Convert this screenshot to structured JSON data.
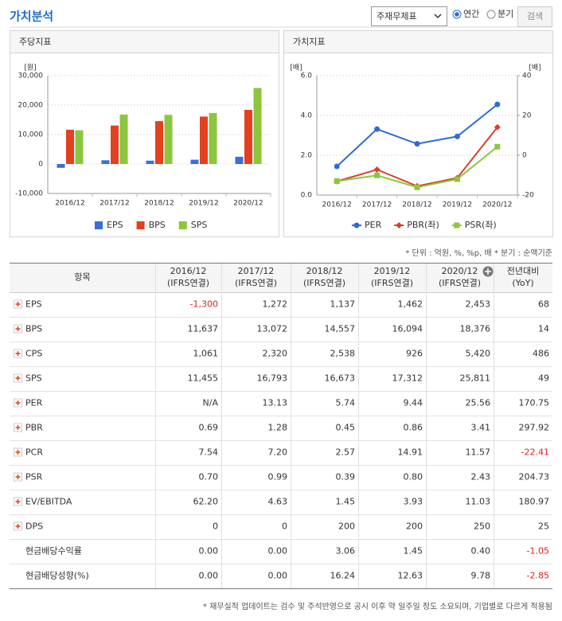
{
  "header": {
    "title": "가치분석",
    "select": "주재무제표",
    "radio": [
      "연간",
      "분기"
    ],
    "radio_selected": 0,
    "button": "검색"
  },
  "panels": [
    "주당지표",
    "가치지표"
  ],
  "chart_data": [
    {
      "type": "bar",
      "y_label": "[원]",
      "categories": [
        "2016/12",
        "2017/12",
        "2018/12",
        "2019/12",
        "2020/12"
      ],
      "series": [
        {
          "name": "EPS",
          "color": "#3a6fd8",
          "values": [
            -1300,
            1272,
            1137,
            1462,
            2453
          ]
        },
        {
          "name": "BPS",
          "color": "#e2401f",
          "values": [
            11637,
            13072,
            14557,
            16094,
            18376
          ]
        },
        {
          "name": "SPS",
          "color": "#8cc63e",
          "values": [
            11455,
            16793,
            16673,
            17312,
            25811
          ]
        }
      ],
      "ylim": [
        -10000,
        30000
      ],
      "yticks": [
        {
          "value": -10000,
          "label": "-10,000"
        },
        0,
        {
          "value": 10000,
          "label": "10,000"
        },
        {
          "value": 20000,
          "label": "20,000"
        },
        {
          "value": 30000,
          "label": "30,000"
        }
      ],
      "grid": true,
      "legend": "bottom"
    },
    {
      "type": "line",
      "y_label": "[배]",
      "y2_label": "[배]",
      "categories": [
        "2016/12",
        "2017/12",
        "2018/12",
        "2019/12",
        "2020/12"
      ],
      "series": [
        {
          "name": "PER",
          "color": "#2f6bd6",
          "marker": "circle",
          "axis": "y2",
          "values": [
            -5.6,
            13.13,
            5.74,
            9.44,
            25.56
          ]
        },
        {
          "name": "PBR(좌)",
          "color": "#d9402b",
          "marker": "diamond",
          "values": [
            0.69,
            1.28,
            0.45,
            0.86,
            3.41
          ]
        },
        {
          "name": "PSR(좌)",
          "color": "#8cc63e",
          "marker": "square",
          "values": [
            0.7,
            0.99,
            0.39,
            0.8,
            2.43
          ]
        }
      ],
      "ylim": [
        0,
        6
      ],
      "yticks": [
        {
          "value": 0,
          "label": "0.0"
        },
        {
          "value": 2,
          "label": "2.0"
        },
        {
          "value": 4,
          "label": "4.0"
        },
        {
          "value": 6,
          "label": "6.0"
        }
      ],
      "y2lim": [
        -20,
        40
      ],
      "y2ticks": [
        -20,
        0,
        20,
        40
      ],
      "grid": true,
      "legend": "bottom"
    }
  ],
  "unit_note": "* 단위 : 억원, %, %p, 배    * 분기 : 순액기준",
  "table": {
    "header": [
      [
        "항목"
      ],
      [
        "2016/12",
        "(IFRS연결)"
      ],
      [
        "2017/12",
        "(IFRS연결)"
      ],
      [
        "2018/12",
        "(IFRS연결)"
      ],
      [
        "2019/12",
        "(IFRS연결)"
      ],
      [
        "2020/12",
        "(IFRS연결)"
      ],
      [
        "전년대비",
        "(YoY)"
      ]
    ],
    "rows": [
      [
        "EPS",
        "-1,300",
        "1,272",
        "1,137",
        "1,462",
        "2,453",
        "68"
      ],
      [
        "BPS",
        "11,637",
        "13,072",
        "14,557",
        "16,094",
        "18,376",
        "14"
      ],
      [
        "CPS",
        "1,061",
        "2,320",
        "2,538",
        "926",
        "5,420",
        "486"
      ],
      [
        "SPS",
        "11,455",
        "16,793",
        "16,673",
        "17,312",
        "25,811",
        "49"
      ],
      [
        "PER",
        "N/A",
        "13.13",
        "5.74",
        "9.44",
        "25.56",
        "170.75"
      ],
      [
        "PBR",
        "0.69",
        "1.28",
        "0.45",
        "0.86",
        "3.41",
        "297.92"
      ],
      [
        "PCR",
        "7.54",
        "7.20",
        "2.57",
        "14.91",
        "11.57",
        "-22.41"
      ],
      [
        "PSR",
        "0.70",
        "0.99",
        "0.39",
        "0.80",
        "2.43",
        "204.73"
      ],
      [
        "EV/EBITDA",
        "62.20",
        "4.63",
        "1.45",
        "3.93",
        "11.03",
        "180.97"
      ],
      [
        "DPS",
        "0",
        "0",
        "200",
        "200",
        "250",
        "25"
      ],
      [
        "현금배당수익률",
        "0.00",
        "0.00",
        "3.06",
        "1.45",
        "0.40",
        "-1.05"
      ],
      [
        "현금배당성향(%)",
        "0.00",
        "0.00",
        "16.24",
        "12.63",
        "9.78",
        "-2.85"
      ]
    ],
    "expandable_rows": 10
  },
  "footnote": "* 재무실적 업데이트는 검수 및 주석반영으로 공시 이후 약 일주일 정도 소요되며, 기업별로 다르게 적용됨"
}
